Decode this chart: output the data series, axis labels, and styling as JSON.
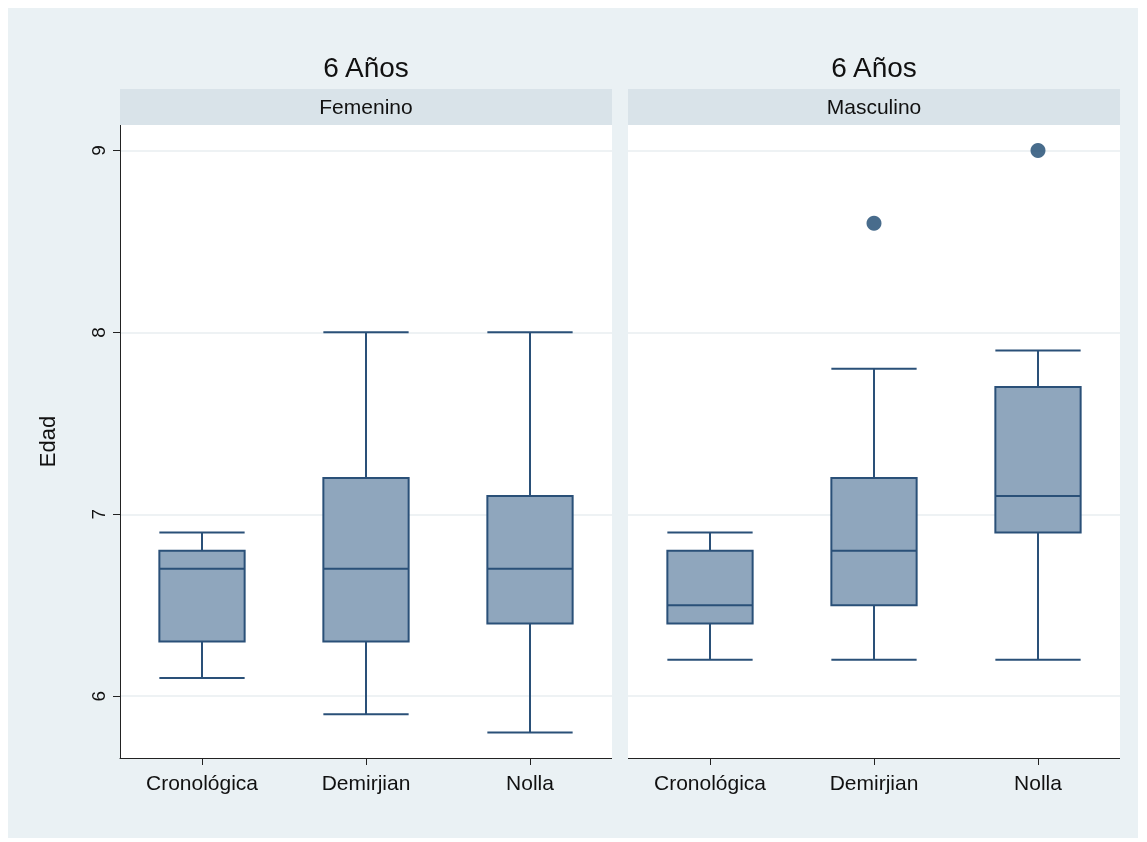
{
  "chart_data": [
    {
      "type": "box",
      "title": "6 Años",
      "subtitle": "Femenino",
      "ylabel": "Edad",
      "categories": [
        "Cronológica",
        "Demirjian",
        "Nolla"
      ],
      "ylim": [
        5.66,
        9.14
      ],
      "yticks": [
        6,
        7,
        8,
        9
      ],
      "grid": "y",
      "series": [
        {
          "color": "#8fa6bd",
          "boxes": [
            {
              "low": 6.1,
              "q1": 6.3,
              "median": 6.7,
              "q3": 6.8,
              "high": 6.9
            },
            {
              "low": 5.9,
              "q1": 6.3,
              "median": 6.7,
              "q3": 7.2,
              "high": 8
            },
            {
              "low": 5.8,
              "q1": 6.4,
              "median": 6.7,
              "q3": 7.1,
              "high": 8
            }
          ]
        }
      ]
    },
    {
      "type": "box",
      "title": "6 Años",
      "subtitle": "Masculino",
      "categories": [
        "Cronológica",
        "Demirjian",
        "Nolla"
      ],
      "ylim": [
        5.66,
        9.14
      ],
      "yticks": [
        6,
        7,
        8,
        9
      ],
      "grid": "y",
      "tick_labels": "x",
      "series": [
        {
          "color": "#8fa6bd",
          "boxes": [
            {
              "low": 6.2,
              "q1": 6.4,
              "median": 6.5,
              "q3": 6.8,
              "high": 6.9
            },
            {
              "low": 6.2,
              "q1": 6.5,
              "median": 6.8,
              "q3": 7.2,
              "high": 7.8,
              "outliers": [
                8.6
              ]
            },
            {
              "low": 6.2,
              "q1": 6.9,
              "median": 7.1,
              "q3": 7.7,
              "high": 7.9,
              "outliers": [
                9
              ]
            }
          ]
        }
      ]
    }
  ]
}
